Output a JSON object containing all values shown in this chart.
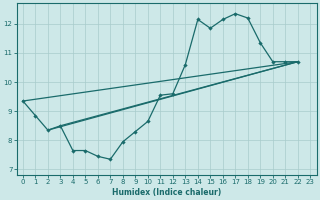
{
  "xlabel": "Humidex (Indice chaleur)",
  "xlim": [
    -0.5,
    23.5
  ],
  "ylim": [
    6.8,
    12.7
  ],
  "xticks": [
    0,
    1,
    2,
    3,
    4,
    5,
    6,
    7,
    8,
    9,
    10,
    11,
    12,
    13,
    14,
    15,
    16,
    17,
    18,
    19,
    20,
    21,
    22,
    23
  ],
  "yticks": [
    7,
    8,
    9,
    10,
    11,
    12
  ],
  "bg_color": "#cde8e8",
  "line_color": "#1a6b6b",
  "grid_color": "#a8cccc",
  "marked_line_x": [
    0,
    1,
    2,
    3,
    4,
    5,
    6,
    7,
    8,
    9,
    10,
    11,
    12,
    13,
    14,
    15,
    16,
    17,
    18,
    19,
    20,
    21,
    22
  ],
  "marked_line_y": [
    9.35,
    8.85,
    8.35,
    8.5,
    7.65,
    7.65,
    7.45,
    7.35,
    7.95,
    8.3,
    8.65,
    9.55,
    9.6,
    10.6,
    12.15,
    11.85,
    12.15,
    12.35,
    12.2,
    11.35,
    10.7,
    10.7,
    10.7
  ],
  "straight_lines": [
    {
      "x": [
        0,
        22
      ],
      "y": [
        9.35,
        10.7
      ]
    },
    {
      "x": [
        2,
        22
      ],
      "y": [
        8.35,
        10.7
      ]
    },
    {
      "x": [
        3,
        22
      ],
      "y": [
        8.5,
        10.7
      ]
    }
  ]
}
